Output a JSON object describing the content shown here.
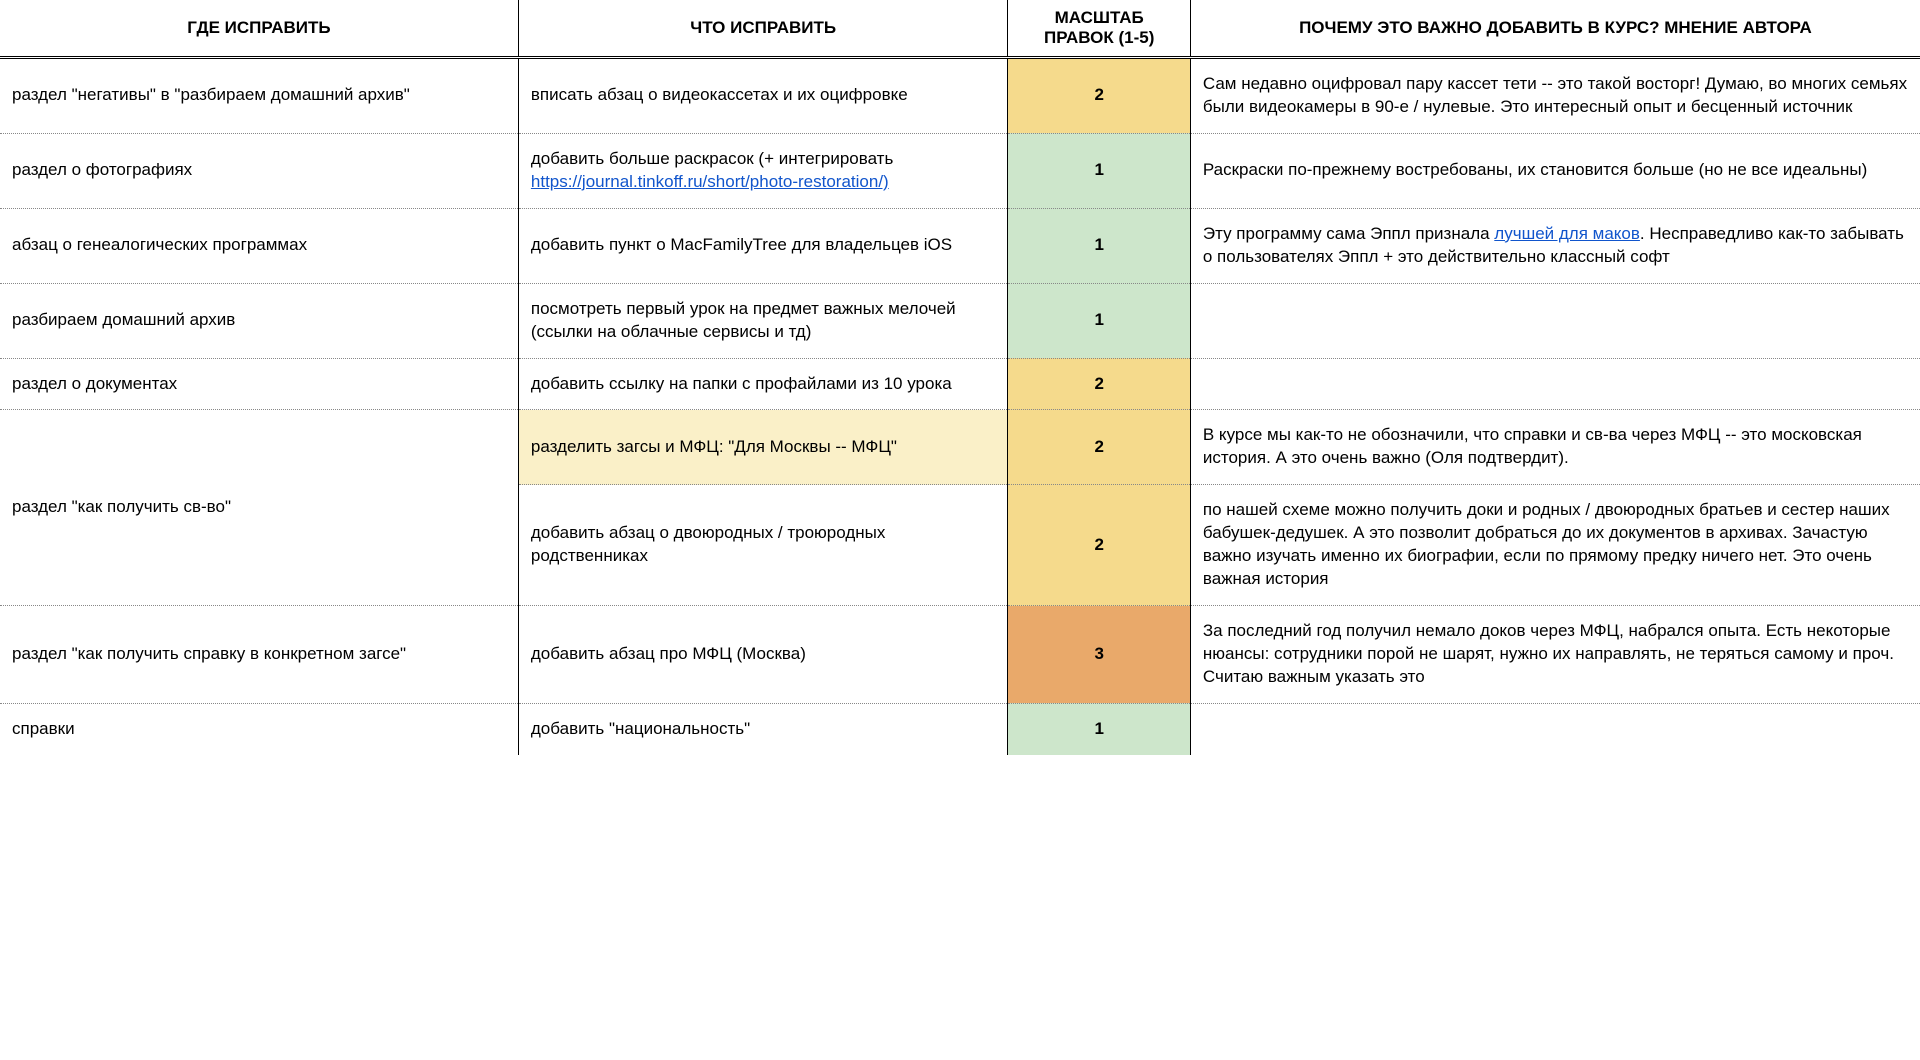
{
  "columns": {
    "where": "ГДЕ ИСПРАВИТЬ",
    "what": "ЧТО ИСПРАВИТЬ",
    "scale": "МАСШТАБ ПРАВОК (1-5)",
    "why": "ПОЧЕМУ ЭТО ВАЖНО ДОБАВИТЬ В КУРС? МНЕНИЕ АВТОРА"
  },
  "scale_colors": {
    "1": "#cde6cb",
    "2": "#f5da8c",
    "3": "#e9a96a"
  },
  "highlight_color": "#faf0c8",
  "link_color": "#1155cc",
  "font_size_pt": 13,
  "rows": [
    {
      "where": "раздел \"негативы\" в \"разбираем домашний архив\"",
      "what_text": "вписать абзац о видеокассетах и их оцифровке",
      "scale": "2",
      "why_text": "Сам недавно оцифровал пару кассет тети -- это такой восторг! Думаю, во многих семьях были видеокамеры в 90-е / нулевые. Это интересный опыт и бесценный источник"
    },
    {
      "where": "раздел о фотографиях",
      "what_prefix": "добавить больше раскрасок (+ интегрировать ",
      "what_link_text": "https://journal.tinkoff.ru/short/photo-restoration/)",
      "scale": "1",
      "why_text": "Раскраски по-прежнему востребованы, их становится больше (но не все идеальны)"
    },
    {
      "where": "абзац о генеалогических программах",
      "what_text": "добавить пункт о MacFamilyTree для владельцев iOS",
      "scale": "1",
      "why_prefix": "Эту программу сама Эппл признала ",
      "why_link_text": "лучшей для маков",
      "why_suffix": ". Несправедливо как-то забывать о  пользователях Эппл + это действительно классный софт"
    },
    {
      "where": "разбираем домашний архив",
      "what_text": "посмотреть первый урок на предмет важных мелочей (ссылки на облачные сервисы и тд)",
      "scale": "1",
      "why_text": ""
    },
    {
      "where": "раздел о документах",
      "what_text": "добавить ссылку на папки с профайлами из 10 урока",
      "scale": "2",
      "why_text": ""
    },
    {
      "where": "раздел \"как получить св-во\"",
      "where_rowspan": 2,
      "what_text": "разделить загсы и МФЦ: \"Для Москвы -- МФЦ\"",
      "what_highlight": true,
      "scale": "2",
      "why_text": "В курсе мы как-то не обозначили, что справки и св-ва через МФЦ -- это московская история. А это очень важно (Оля подтвердит)."
    },
    {
      "what_text": "добавить абзац о двоюродных / троюродных родственниках",
      "scale": "2",
      "why_text": "по нашей схеме можно получить доки и родных / двоюродных братьев и сестер наших бабушек-дедушек. А это позволит добраться до их документов в архивах. Зачастую важно изучать именно их биографии, если по прямому предку ничего нет. Это очень важная история"
    },
    {
      "where": "раздел \"как получить справку в конкретном загсе\"",
      "what_text": "добавить абзац про МФЦ (Москва)",
      "scale": "3",
      "why_text": "За последний год получил немало доков через МФЦ, набрался опыта. Есть некоторые нюансы: сотрудники порой не шарят, нужно их направлять, не теряться самому и проч. Считаю важным указать это"
    },
    {
      "where": "справки",
      "what_text": "добавить \"национальность\"",
      "scale": "1",
      "why_text": ""
    }
  ]
}
